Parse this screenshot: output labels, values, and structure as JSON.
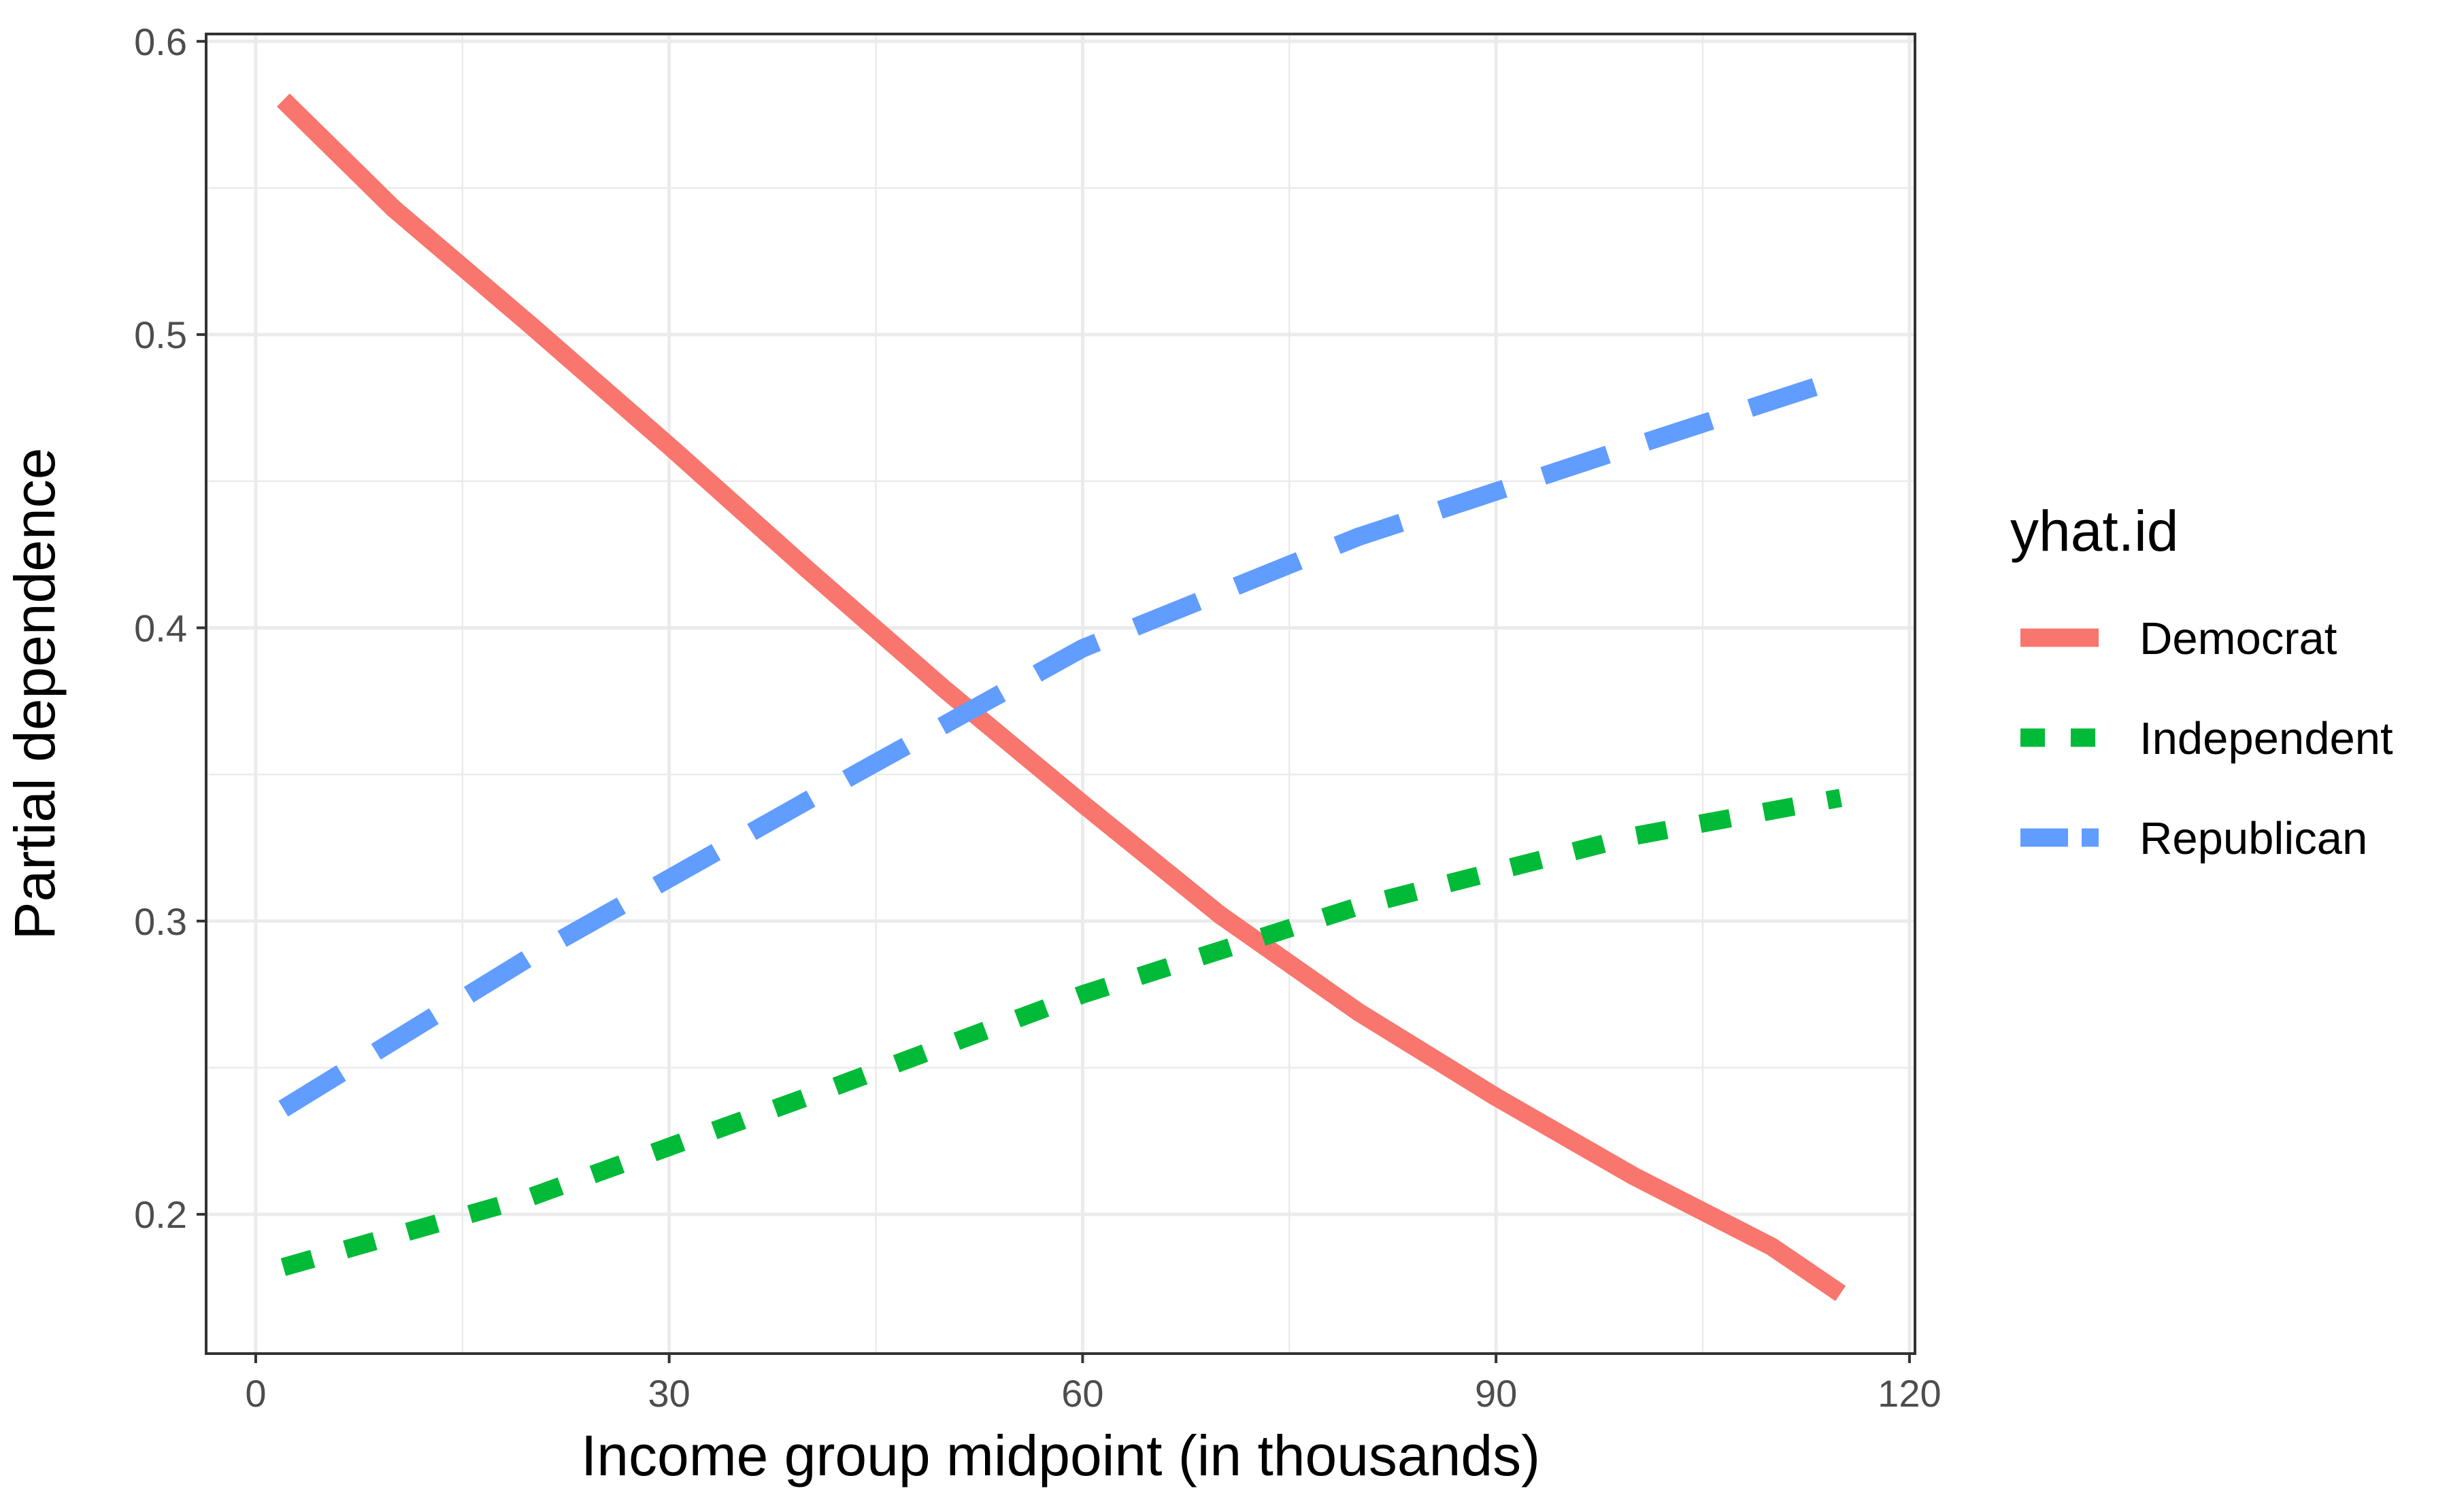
{
  "chart_data": {
    "type": "line",
    "title": "",
    "xlabel": "Income group midpoint (in thousands)",
    "ylabel": "Partial dependence",
    "xlim": [
      -3.6,
      120.4
    ],
    "ylim": [
      0.1525,
      0.6025
    ],
    "x_ticks": [
      0,
      30,
      60,
      90,
      120
    ],
    "y_ticks": [
      0.2,
      0.3,
      0.4,
      0.5,
      0.6
    ],
    "x_tick_labels": [
      "0",
      "30",
      "60",
      "90",
      "120"
    ],
    "y_tick_labels": [
      "0.2",
      "0.3",
      "0.4",
      "0.5",
      "0.6"
    ],
    "grid": true,
    "legend": {
      "title": "yhat.id",
      "position": "right",
      "entries": [
        "Democrat",
        "Independent",
        "Republican"
      ]
    },
    "series": [
      {
        "name": "Democrat",
        "color": "#F8766D",
        "linetype": "solid",
        "x": [
          2,
          10,
          20,
          30,
          40,
          50,
          60,
          70,
          80,
          90,
          100,
          110,
          115
        ],
        "y": [
          0.58,
          0.543,
          0.503,
          0.462,
          0.42,
          0.379,
          0.34,
          0.302,
          0.269,
          0.24,
          0.213,
          0.189,
          0.173
        ]
      },
      {
        "name": "Independent",
        "color": "#00BA38",
        "linetype": "dotted",
        "x": [
          2,
          20,
          40,
          60,
          80,
          100,
          115
        ],
        "y": [
          0.182,
          0.206,
          0.24,
          0.275,
          0.305,
          0.329,
          0.342
        ]
      },
      {
        "name": "Republican",
        "color": "#619CFF",
        "linetype": "dashed",
        "x": [
          2,
          20,
          40,
          60,
          80,
          100,
          115
        ],
        "y": [
          0.236,
          0.288,
          0.341,
          0.393,
          0.431,
          0.462,
          0.485
        ]
      }
    ]
  }
}
